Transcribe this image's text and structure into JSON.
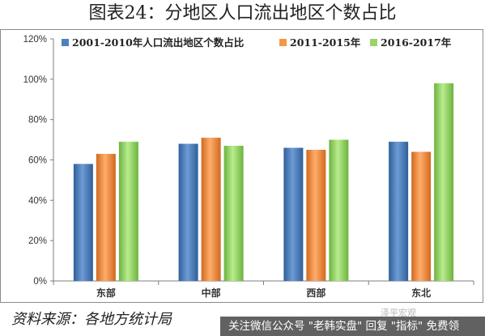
{
  "title": "图表24：分地区人口流出地区个数占比",
  "source": "资料来源：各地方统计局",
  "watermark": "泽平宏观",
  "overlay_text": "关注微信公众号 \"老韩实盘\" 回复 \"指标\" 免费领",
  "chart_data": {
    "type": "bar",
    "categories": [
      "东部",
      "中部",
      "西部",
      "东北"
    ],
    "series": [
      {
        "name": "2001-2010年人口流出地区个数占比",
        "color": "#4f81bd",
        "values": [
          58,
          68,
          66,
          69
        ]
      },
      {
        "name": "2011-2015年",
        "color": "#f79646",
        "values": [
          63,
          71,
          65,
          64
        ]
      },
      {
        "name": "2016-2017年",
        "color": "#9bd36b",
        "values": [
          69,
          67,
          70,
          98
        ]
      }
    ],
    "ylim": [
      0,
      120
    ],
    "yticks": [
      "0%",
      "20%",
      "40%",
      "60%",
      "80%",
      "100%",
      "120%"
    ],
    "ytick_values": [
      0,
      20,
      40,
      60,
      80,
      100,
      120
    ],
    "legend_position": "top",
    "grid": false
  }
}
